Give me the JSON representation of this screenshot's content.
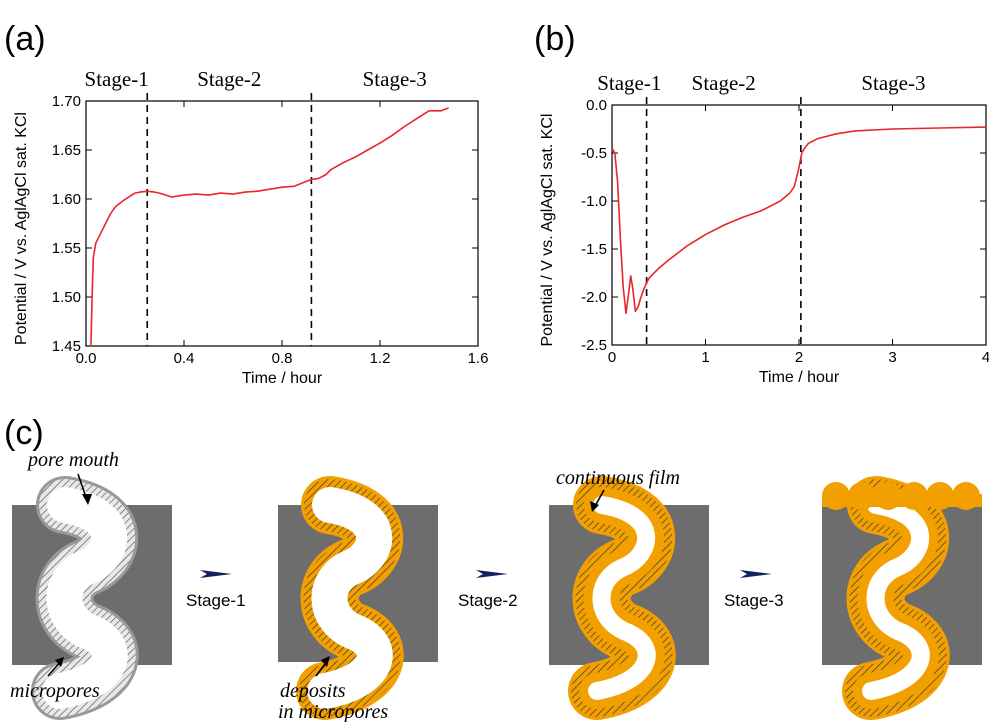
{
  "panel_a_label": "(a)",
  "panel_b_label": "(b)",
  "panel_c_label": "(c)",
  "chart_data": [
    {
      "type": "line",
      "stage_labels": [
        "Stage-1",
        "Stage-2",
        "Stage-3"
      ],
      "stage_boundaries": [
        0.25,
        0.92
      ],
      "xlabel": "Time / hour",
      "ylabel": "Potential / V vs. AglAgCl sat. KCl",
      "xlim": [
        0.0,
        1.6
      ],
      "ylim": [
        1.45,
        1.7
      ],
      "xticks": [
        "0.0",
        "0.4",
        "0.8",
        "1.2",
        "1.6"
      ],
      "yticks": [
        "1.45",
        "1.50",
        "1.55",
        "1.60",
        "1.65",
        "1.70"
      ],
      "series_color": "#e8262a",
      "grid": false,
      "series": [
        {
          "x": [
            0.02,
            0.025,
            0.03,
            0.04,
            0.06,
            0.08,
            0.1,
            0.12,
            0.15,
            0.18,
            0.2,
            0.22,
            0.25,
            0.28,
            0.3,
            0.35,
            0.4,
            0.45,
            0.5,
            0.55,
            0.6,
            0.65,
            0.7,
            0.75,
            0.8,
            0.85,
            0.88,
            0.9,
            0.92,
            0.95,
            0.98,
            1.0,
            1.05,
            1.1,
            1.15,
            1.2,
            1.25,
            1.3,
            1.35,
            1.4,
            1.45,
            1.48
          ],
          "y": [
            1.45,
            1.5,
            1.54,
            1.555,
            1.565,
            1.575,
            1.585,
            1.592,
            1.598,
            1.603,
            1.606,
            1.607,
            1.608,
            1.607,
            1.606,
            1.602,
            1.604,
            1.605,
            1.604,
            1.606,
            1.605,
            1.607,
            1.608,
            1.61,
            1.612,
            1.613,
            1.616,
            1.618,
            1.62,
            1.621,
            1.625,
            1.63,
            1.637,
            1.643,
            1.65,
            1.657,
            1.665,
            1.674,
            1.682,
            1.69,
            1.69,
            1.693
          ]
        }
      ]
    },
    {
      "type": "line",
      "stage_labels": [
        "Stage-1",
        "Stage-2",
        "Stage-3"
      ],
      "stage_boundaries": [
        0.37,
        2.02
      ],
      "xlabel": "Time / hour",
      "ylabel": "Potential / V vs. AglAgCl sat. KCl",
      "xlim": [
        0,
        4
      ],
      "ylim": [
        -2.5,
        0.0
      ],
      "xticks": [
        "0",
        "1",
        "2",
        "3",
        "4"
      ],
      "yticks": [
        "-2.5",
        "-2.0",
        "-1.5",
        "-1.0",
        "-0.5",
        "0.0"
      ],
      "series_color": "#e8262a",
      "grid": false,
      "series": [
        {
          "x": [
            0.0,
            0.03,
            0.06,
            0.09,
            0.12,
            0.15,
            0.18,
            0.2,
            0.22,
            0.25,
            0.28,
            0.31,
            0.34,
            0.37,
            0.4,
            0.5,
            0.6,
            0.8,
            1.0,
            1.2,
            1.4,
            1.6,
            1.8,
            1.9,
            1.95,
            2.0,
            2.03,
            2.06,
            2.1,
            2.2,
            2.4,
            2.6,
            3.0,
            3.5,
            4.0
          ],
          "y": [
            -0.45,
            -0.5,
            -0.8,
            -1.4,
            -1.9,
            -2.17,
            -1.95,
            -1.78,
            -1.9,
            -2.15,
            -2.1,
            -2.0,
            -1.92,
            -1.85,
            -1.8,
            -1.7,
            -1.62,
            -1.47,
            -1.35,
            -1.25,
            -1.17,
            -1.1,
            -1.0,
            -0.92,
            -0.85,
            -0.65,
            -0.5,
            -0.45,
            -0.4,
            -0.35,
            -0.3,
            -0.27,
            -0.25,
            -0.24,
            -0.23
          ]
        }
      ]
    }
  ],
  "schematic": {
    "annotations": {
      "pore_mouth": "pore mouth",
      "micropores": "micropores",
      "deposits_line1": "deposits",
      "deposits_line2": "in micropores",
      "continuous_film": "continuous film"
    },
    "steps": [
      "Stage-1",
      "Stage-2",
      "Stage-3"
    ],
    "colors": {
      "substrate": "#6d6d6d",
      "pore": "#ffffff",
      "deposit": "#f2a000",
      "arrow": "#12235c"
    }
  }
}
